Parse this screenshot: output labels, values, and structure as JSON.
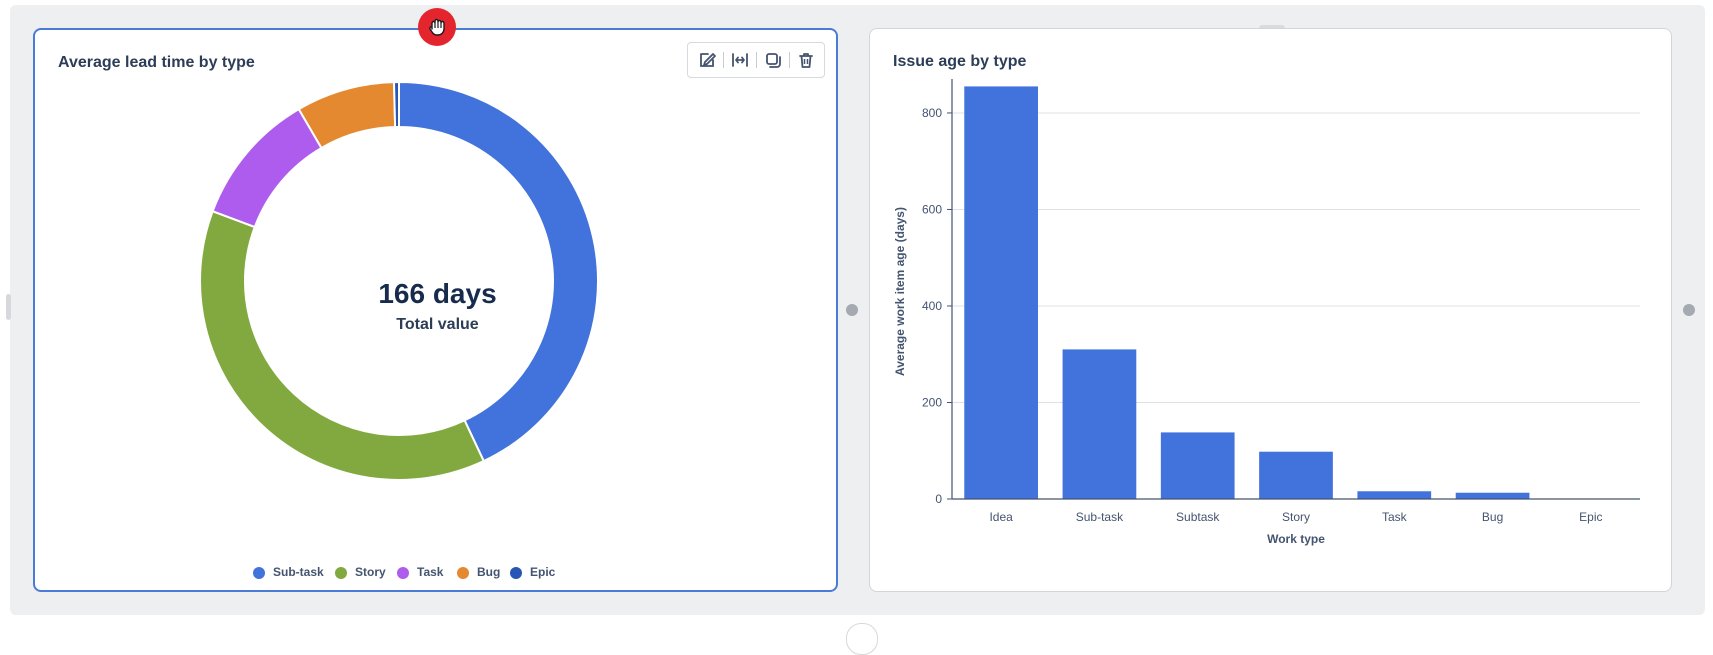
{
  "donut_card": {
    "title": "Average lead time by type",
    "center_value": "166 days",
    "center_label": "Total value",
    "toolbar": {
      "edit_icon": "pencil-edit-icon",
      "resize_icon": "expand-width-icon",
      "duplicate_icon": "copy-icon",
      "delete_icon": "trash-icon"
    }
  },
  "bar_card": {
    "title": "Issue age by type"
  },
  "colors": {
    "blue": "#4272db",
    "green": "#82a93f",
    "purple": "#ae5ced",
    "orange": "#e58930",
    "navy": "#2856b5",
    "selected_border": "#4a7bd9",
    "drag_handle": "#e5252e"
  },
  "icons": {
    "drag_handle": "hand-grab-icon"
  },
  "chart_data": [
    {
      "type": "pie",
      "variant": "donut",
      "title": "Average lead time by type",
      "categories": [
        "Sub-task",
        "Story",
        "Task",
        "Bug",
        "Epic"
      ],
      "values": [
        43.0,
        37.7,
        10.9,
        8.0,
        0.4
      ],
      "colors": [
        "#4272db",
        "#82a93f",
        "#ae5ced",
        "#e58930",
        "#2856b5"
      ],
      "legend": "bottom"
    },
    {
      "type": "bar",
      "title": "Issue age by type",
      "categories": [
        "Idea",
        "Sub-task",
        "Subtask",
        "Story",
        "Task",
        "Bug",
        "Epic"
      ],
      "values": [
        855,
        310,
        138,
        98,
        16,
        13,
        1
      ],
      "xlabel": "Work type",
      "ylabel": "Average work item age (days)",
      "ylim": [
        0,
        860
      ],
      "yticks": [
        0,
        200,
        400,
        600,
        800
      ],
      "grid": true,
      "color": "#4272db"
    }
  ]
}
